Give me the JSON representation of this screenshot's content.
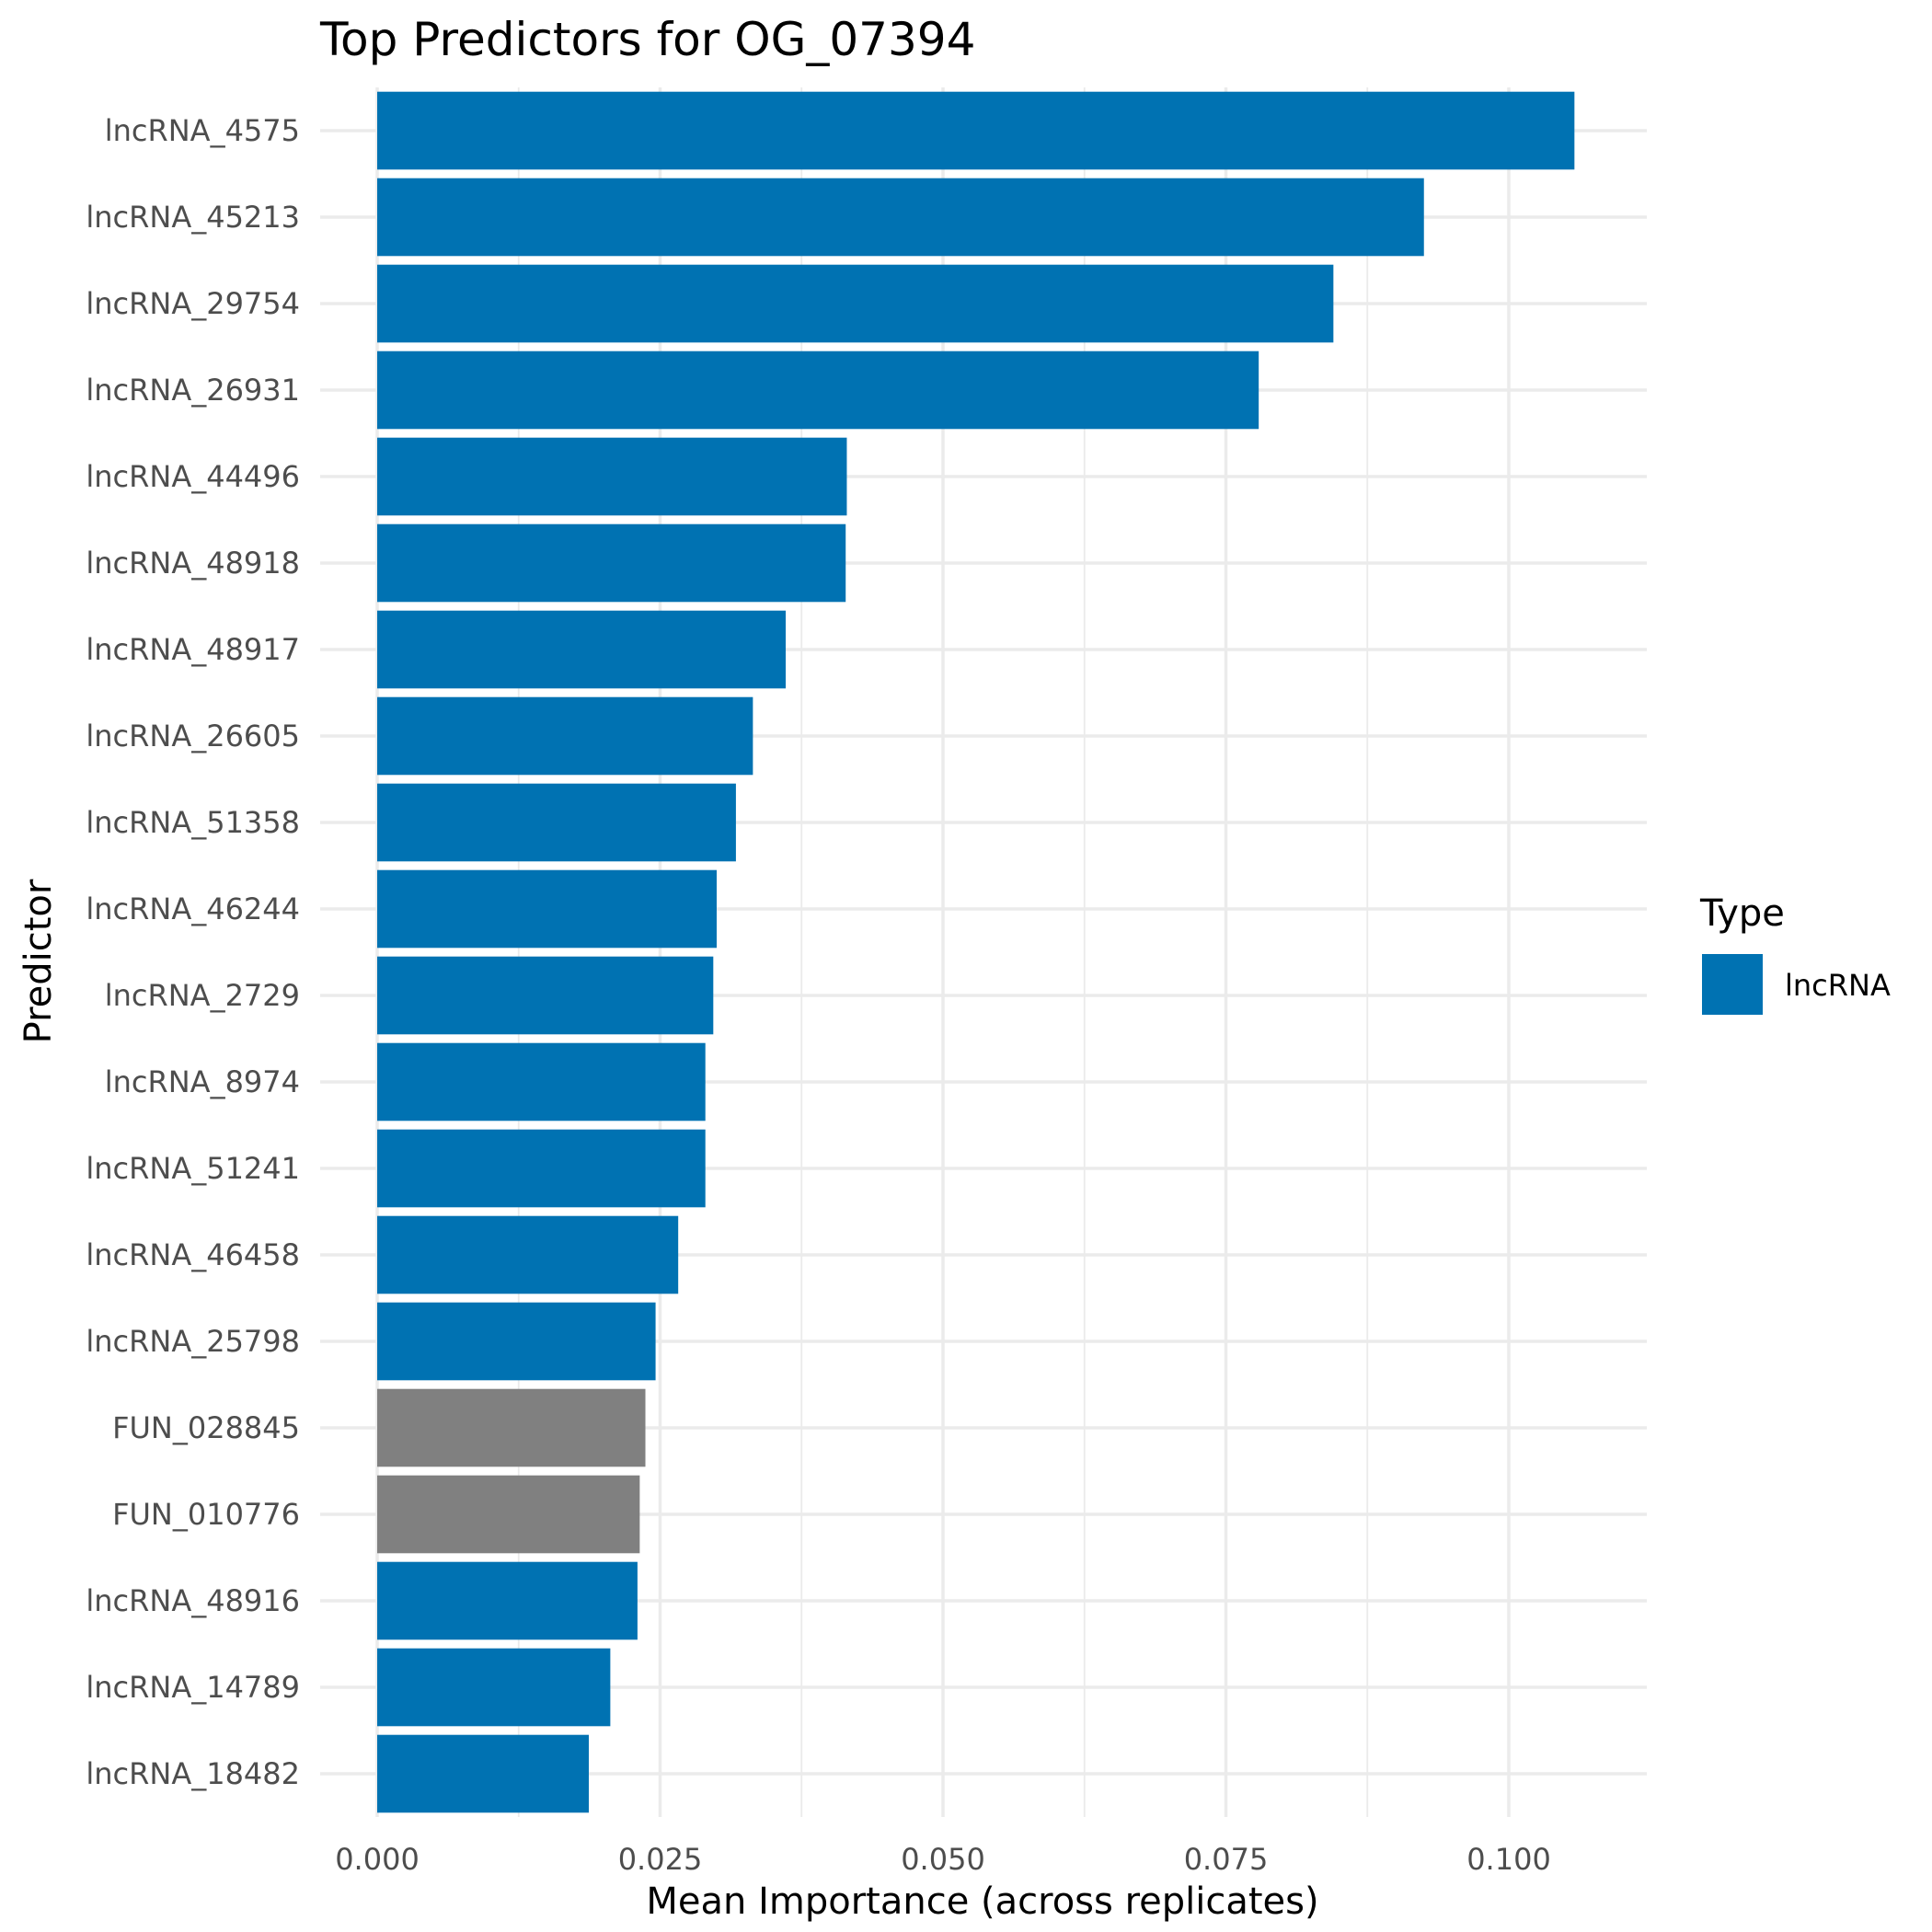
{
  "chart_data": {
    "type": "bar",
    "orientation": "horizontal",
    "title": "Top Predictors for OG_07394",
    "xlabel": "Mean Importance (across replicates)",
    "ylabel": "Predictor",
    "xlim": [
      0,
      0.1115
    ],
    "x_ticks": [
      0,
      0.025,
      0.05,
      0.075,
      0.1
    ],
    "x_tick_labels": [
      "0.000",
      "0.025",
      "0.050",
      "0.075",
      "0.100"
    ],
    "grid": true,
    "legend": {
      "title": "Type",
      "placement": "right",
      "entries": [
        {
          "label": "lncRNA",
          "color": "#0072b2"
        }
      ]
    },
    "colors": {
      "lncRNA": "#0072b2",
      "other": "#808080"
    },
    "bars": [
      {
        "category": "lncRNA_4575",
        "value": 0.1058,
        "type": "lncRNA"
      },
      {
        "category": "lncRNA_45213",
        "value": 0.0925,
        "type": "lncRNA"
      },
      {
        "category": "lncRNA_29754",
        "value": 0.0845,
        "type": "lncRNA"
      },
      {
        "category": "lncRNA_26931",
        "value": 0.0779,
        "type": "lncRNA"
      },
      {
        "category": "lncRNA_44496",
        "value": 0.0415,
        "type": "lncRNA"
      },
      {
        "category": "lncRNA_48918",
        "value": 0.0414,
        "type": "lncRNA"
      },
      {
        "category": "lncRNA_48917",
        "value": 0.0361,
        "type": "lncRNA"
      },
      {
        "category": "lncRNA_26605",
        "value": 0.0332,
        "type": "lncRNA"
      },
      {
        "category": "lncRNA_51358",
        "value": 0.0317,
        "type": "lncRNA"
      },
      {
        "category": "lncRNA_46244",
        "value": 0.03,
        "type": "lncRNA"
      },
      {
        "category": "lncRNA_2729",
        "value": 0.0297,
        "type": "lncRNA"
      },
      {
        "category": "lncRNA_8974",
        "value": 0.029,
        "type": "lncRNA"
      },
      {
        "category": "lncRNA_51241",
        "value": 0.029,
        "type": "lncRNA"
      },
      {
        "category": "lncRNA_46458",
        "value": 0.0266,
        "type": "lncRNA"
      },
      {
        "category": "lncRNA_25798",
        "value": 0.0246,
        "type": "lncRNA"
      },
      {
        "category": "FUN_028845",
        "value": 0.0237,
        "type": "other"
      },
      {
        "category": "FUN_010776",
        "value": 0.0232,
        "type": "other"
      },
      {
        "category": "lncRNA_48916",
        "value": 0.023,
        "type": "lncRNA"
      },
      {
        "category": "lncRNA_14789",
        "value": 0.0206,
        "type": "lncRNA"
      },
      {
        "category": "lncRNA_18482",
        "value": 0.0187,
        "type": "lncRNA"
      }
    ]
  }
}
